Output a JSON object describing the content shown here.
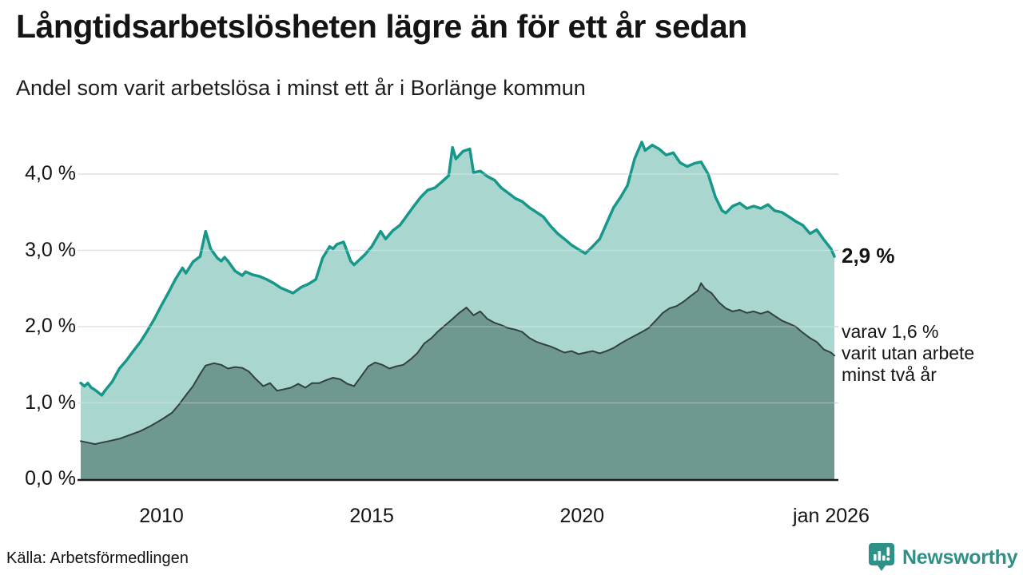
{
  "header": {
    "title": "Långtidsarbetslösheten lägre än för ett år sedan",
    "subtitle": "Andel som varit arbetslösa i minst ett år i Borlänge kommun"
  },
  "chart_data": {
    "type": "area",
    "title": "Långtidsarbetslösheten lägre än för ett år sedan",
    "subtitle": "Andel som varit arbetslösa i minst ett år i Borlänge kommun",
    "unit": "%",
    "grid": true,
    "legend_position": "annotations-right",
    "x_range": [
      2008.08,
      2026.0
    ],
    "ylim": [
      0,
      4.6
    ],
    "y_ticks": [
      {
        "value": 0,
        "label": "0,0 %"
      },
      {
        "value": 1,
        "label": "1,0 %"
      },
      {
        "value": 2,
        "label": "2,0 %"
      },
      {
        "value": 3,
        "label": "3,0 %"
      },
      {
        "value": 4,
        "label": "4,0 %"
      }
    ],
    "x_ticks": [
      {
        "year": 2010,
        "label": "2010"
      },
      {
        "year": 2015,
        "label": "2015"
      },
      {
        "year": 2020,
        "label": "2020"
      },
      {
        "year": 2026.0,
        "label": "jan 2026"
      }
    ],
    "series": [
      {
        "name": "Andel som varit arbetslösa i minst ett år",
        "line_color": "#17978a",
        "fill_color": "#a9d6cf",
        "line_width": 3.5,
        "end_value_label": "2,9 %",
        "values": [
          [
            2008.08,
            1.26
          ],
          [
            2008.17,
            1.22
          ],
          [
            2008.25,
            1.26
          ],
          [
            2008.33,
            1.2
          ],
          [
            2008.42,
            1.17
          ],
          [
            2008.58,
            1.1
          ],
          [
            2008.67,
            1.17
          ],
          [
            2008.83,
            1.28
          ],
          [
            2009.0,
            1.45
          ],
          [
            2009.17,
            1.56
          ],
          [
            2009.33,
            1.68
          ],
          [
            2009.5,
            1.8
          ],
          [
            2009.67,
            1.95
          ],
          [
            2009.83,
            2.1
          ],
          [
            2010.0,
            2.28
          ],
          [
            2010.17,
            2.45
          ],
          [
            2010.33,
            2.62
          ],
          [
            2010.5,
            2.77
          ],
          [
            2010.58,
            2.7
          ],
          [
            2010.75,
            2.85
          ],
          [
            2010.92,
            2.92
          ],
          [
            2011.05,
            3.25
          ],
          [
            2011.17,
            3.02
          ],
          [
            2011.33,
            2.9
          ],
          [
            2011.42,
            2.86
          ],
          [
            2011.5,
            2.91
          ],
          [
            2011.58,
            2.86
          ],
          [
            2011.75,
            2.73
          ],
          [
            2011.92,
            2.67
          ],
          [
            2012.0,
            2.72
          ],
          [
            2012.17,
            2.68
          ],
          [
            2012.33,
            2.66
          ],
          [
            2012.5,
            2.62
          ],
          [
            2012.67,
            2.57
          ],
          [
            2012.83,
            2.51
          ],
          [
            2013.0,
            2.47
          ],
          [
            2013.13,
            2.44
          ],
          [
            2013.33,
            2.52
          ],
          [
            2013.5,
            2.56
          ],
          [
            2013.67,
            2.62
          ],
          [
            2013.83,
            2.9
          ],
          [
            2014.0,
            3.05
          ],
          [
            2014.08,
            3.02
          ],
          [
            2014.17,
            3.08
          ],
          [
            2014.33,
            3.11
          ],
          [
            2014.5,
            2.86
          ],
          [
            2014.58,
            2.81
          ],
          [
            2014.83,
            2.94
          ],
          [
            2015.0,
            3.05
          ],
          [
            2015.21,
            3.25
          ],
          [
            2015.33,
            3.15
          ],
          [
            2015.5,
            3.26
          ],
          [
            2015.67,
            3.33
          ],
          [
            2015.83,
            3.45
          ],
          [
            2016.0,
            3.58
          ],
          [
            2016.17,
            3.7
          ],
          [
            2016.33,
            3.79
          ],
          [
            2016.5,
            3.82
          ],
          [
            2016.67,
            3.9
          ],
          [
            2016.83,
            3.98
          ],
          [
            2016.92,
            4.35
          ],
          [
            2017.0,
            4.2
          ],
          [
            2017.17,
            4.3
          ],
          [
            2017.33,
            4.33
          ],
          [
            2017.42,
            4.02
          ],
          [
            2017.58,
            4.04
          ],
          [
            2017.75,
            3.97
          ],
          [
            2017.92,
            3.92
          ],
          [
            2018.08,
            3.82
          ],
          [
            2018.25,
            3.75
          ],
          [
            2018.42,
            3.68
          ],
          [
            2018.58,
            3.64
          ],
          [
            2018.75,
            3.56
          ],
          [
            2018.92,
            3.5
          ],
          [
            2019.08,
            3.44
          ],
          [
            2019.25,
            3.32
          ],
          [
            2019.42,
            3.22
          ],
          [
            2019.58,
            3.15
          ],
          [
            2019.75,
            3.07
          ],
          [
            2019.92,
            3.01
          ],
          [
            2020.08,
            2.96
          ],
          [
            2020.25,
            3.05
          ],
          [
            2020.42,
            3.15
          ],
          [
            2020.58,
            3.35
          ],
          [
            2020.75,
            3.56
          ],
          [
            2020.92,
            3.7
          ],
          [
            2021.08,
            3.85
          ],
          [
            2021.25,
            4.2
          ],
          [
            2021.42,
            4.42
          ],
          [
            2021.5,
            4.31
          ],
          [
            2021.67,
            4.38
          ],
          [
            2021.83,
            4.33
          ],
          [
            2022.0,
            4.25
          ],
          [
            2022.17,
            4.28
          ],
          [
            2022.33,
            4.15
          ],
          [
            2022.5,
            4.1
          ],
          [
            2022.67,
            4.14
          ],
          [
            2022.83,
            4.16
          ],
          [
            2023.0,
            4.0
          ],
          [
            2023.17,
            3.7
          ],
          [
            2023.33,
            3.52
          ],
          [
            2023.42,
            3.49
          ],
          [
            2023.58,
            3.58
          ],
          [
            2023.75,
            3.62
          ],
          [
            2023.92,
            3.55
          ],
          [
            2024.08,
            3.58
          ],
          [
            2024.25,
            3.55
          ],
          [
            2024.42,
            3.6
          ],
          [
            2024.58,
            3.52
          ],
          [
            2024.75,
            3.5
          ],
          [
            2024.92,
            3.44
          ],
          [
            2025.08,
            3.38
          ],
          [
            2025.25,
            3.33
          ],
          [
            2025.42,
            3.22
          ],
          [
            2025.58,
            3.27
          ],
          [
            2025.75,
            3.14
          ],
          [
            2025.92,
            3.02
          ],
          [
            2026.0,
            2.92
          ]
        ]
      },
      {
        "name": "varav utan arbete minst två år",
        "line_color": "#32423e",
        "fill_color": "#6f9890",
        "line_width": 2,
        "end_value_label": "1,6 %",
        "values": [
          [
            2008.08,
            0.5
          ],
          [
            2008.25,
            0.48
          ],
          [
            2008.42,
            0.46
          ],
          [
            2008.58,
            0.48
          ],
          [
            2008.75,
            0.5
          ],
          [
            2009.0,
            0.53
          ],
          [
            2009.25,
            0.58
          ],
          [
            2009.5,
            0.63
          ],
          [
            2009.75,
            0.7
          ],
          [
            2010.0,
            0.78
          ],
          [
            2010.25,
            0.87
          ],
          [
            2010.42,
            0.98
          ],
          [
            2010.58,
            1.1
          ],
          [
            2010.75,
            1.22
          ],
          [
            2010.92,
            1.38
          ],
          [
            2011.05,
            1.49
          ],
          [
            2011.25,
            1.52
          ],
          [
            2011.42,
            1.5
          ],
          [
            2011.58,
            1.45
          ],
          [
            2011.75,
            1.47
          ],
          [
            2011.92,
            1.46
          ],
          [
            2012.08,
            1.41
          ],
          [
            2012.25,
            1.31
          ],
          [
            2012.42,
            1.22
          ],
          [
            2012.58,
            1.26
          ],
          [
            2012.75,
            1.16
          ],
          [
            2012.92,
            1.18
          ],
          [
            2013.08,
            1.2
          ],
          [
            2013.25,
            1.25
          ],
          [
            2013.42,
            1.2
          ],
          [
            2013.58,
            1.26
          ],
          [
            2013.75,
            1.26
          ],
          [
            2013.92,
            1.3
          ],
          [
            2014.08,
            1.33
          ],
          [
            2014.25,
            1.31
          ],
          [
            2014.42,
            1.25
          ],
          [
            2014.58,
            1.22
          ],
          [
            2014.75,
            1.35
          ],
          [
            2014.92,
            1.48
          ],
          [
            2015.08,
            1.53
          ],
          [
            2015.25,
            1.5
          ],
          [
            2015.42,
            1.45
          ],
          [
            2015.58,
            1.48
          ],
          [
            2015.75,
            1.5
          ],
          [
            2015.92,
            1.57
          ],
          [
            2016.08,
            1.65
          ],
          [
            2016.25,
            1.78
          ],
          [
            2016.42,
            1.85
          ],
          [
            2016.58,
            1.94
          ],
          [
            2016.75,
            2.02
          ],
          [
            2016.92,
            2.1
          ],
          [
            2017.08,
            2.18
          ],
          [
            2017.25,
            2.25
          ],
          [
            2017.42,
            2.15
          ],
          [
            2017.58,
            2.2
          ],
          [
            2017.75,
            2.1
          ],
          [
            2017.92,
            2.05
          ],
          [
            2018.08,
            2.02
          ],
          [
            2018.25,
            1.98
          ],
          [
            2018.42,
            1.96
          ],
          [
            2018.58,
            1.93
          ],
          [
            2018.75,
            1.85
          ],
          [
            2018.92,
            1.8
          ],
          [
            2019.08,
            1.77
          ],
          [
            2019.25,
            1.74
          ],
          [
            2019.42,
            1.7
          ],
          [
            2019.58,
            1.66
          ],
          [
            2019.75,
            1.68
          ],
          [
            2019.92,
            1.64
          ],
          [
            2020.08,
            1.66
          ],
          [
            2020.25,
            1.68
          ],
          [
            2020.42,
            1.65
          ],
          [
            2020.58,
            1.68
          ],
          [
            2020.75,
            1.72
          ],
          [
            2020.92,
            1.78
          ],
          [
            2021.08,
            1.83
          ],
          [
            2021.25,
            1.88
          ],
          [
            2021.42,
            1.93
          ],
          [
            2021.58,
            1.98
          ],
          [
            2021.75,
            2.08
          ],
          [
            2021.92,
            2.18
          ],
          [
            2022.08,
            2.24
          ],
          [
            2022.25,
            2.27
          ],
          [
            2022.42,
            2.33
          ],
          [
            2022.58,
            2.4
          ],
          [
            2022.75,
            2.47
          ],
          [
            2022.83,
            2.57
          ],
          [
            2022.92,
            2.5
          ],
          [
            2023.08,
            2.44
          ],
          [
            2023.25,
            2.32
          ],
          [
            2023.42,
            2.24
          ],
          [
            2023.58,
            2.2
          ],
          [
            2023.75,
            2.22
          ],
          [
            2023.92,
            2.18
          ],
          [
            2024.08,
            2.2
          ],
          [
            2024.25,
            2.17
          ],
          [
            2024.42,
            2.2
          ],
          [
            2024.58,
            2.14
          ],
          [
            2024.75,
            2.08
          ],
          [
            2024.92,
            2.04
          ],
          [
            2025.08,
            2.0
          ],
          [
            2025.25,
            1.92
          ],
          [
            2025.42,
            1.85
          ],
          [
            2025.58,
            1.8
          ],
          [
            2025.75,
            1.7
          ],
          [
            2025.92,
            1.66
          ],
          [
            2026.0,
            1.62
          ]
        ]
      }
    ],
    "annotations": [
      {
        "text": "2,9 %",
        "bold": true
      },
      {
        "lines": [
          "varav 1,6 %",
          "varit utan arbete",
          "minst två år"
        ]
      }
    ]
  },
  "source": {
    "label": "Källa: Arbetsförmedlingen"
  },
  "branding": {
    "name": "Newsworthy",
    "icon": "newsworthy-pin-barchart-icon",
    "color": "#2d9187"
  }
}
